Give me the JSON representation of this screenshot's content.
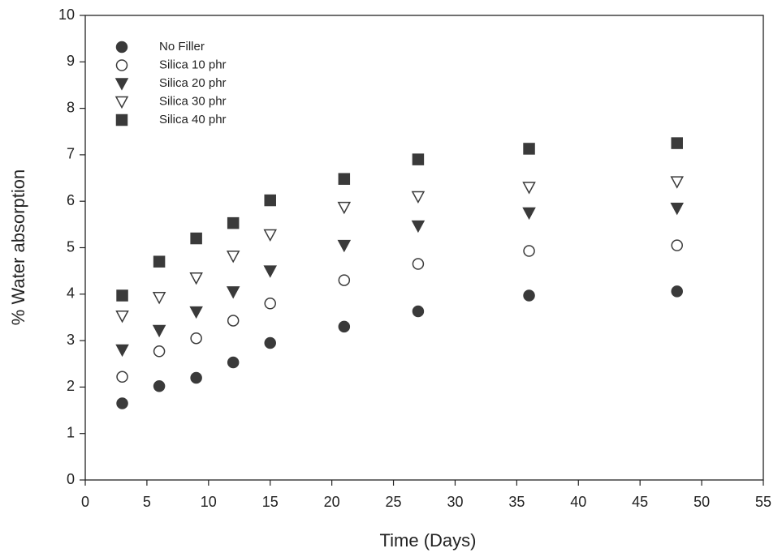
{
  "chart_data": {
    "type": "scatter",
    "x_label": "Time (Days)",
    "y_label": "% Water absorption",
    "x": [
      3,
      6,
      9,
      12,
      15,
      21,
      27,
      36,
      48
    ],
    "xlim": [
      0,
      55
    ],
    "xticks": [
      0,
      5,
      10,
      15,
      20,
      25,
      30,
      35,
      40,
      45,
      50,
      55
    ],
    "ylim": [
      0,
      10
    ],
    "yticks": [
      0,
      1,
      2,
      3,
      4,
      5,
      6,
      7,
      8,
      9,
      10
    ],
    "legend": "upper left",
    "series": [
      {
        "name": "No Filler",
        "color": "#3a3a3a",
        "marker": "circle",
        "filled": true,
        "values": [
          1.65,
          2.02,
          2.2,
          2.53,
          2.95,
          3.3,
          3.63,
          3.97,
          4.06
        ]
      },
      {
        "name": "Silica 10 phr",
        "color": "#3a3a3a",
        "marker": "circle",
        "filled": false,
        "values": [
          2.22,
          2.77,
          3.05,
          3.43,
          3.8,
          4.3,
          4.65,
          4.93,
          5.05
        ]
      },
      {
        "name": "Silica 20 phr",
        "color": "#3a3a3a",
        "marker": "triangle-down",
        "filled": true,
        "values": [
          2.8,
          3.22,
          3.62,
          4.05,
          4.5,
          5.05,
          5.47,
          5.75,
          5.85
        ]
      },
      {
        "name": "Silica 30 phr",
        "color": "#3a3a3a",
        "marker": "triangle-down",
        "filled": false,
        "values": [
          3.53,
          3.93,
          4.35,
          4.82,
          5.28,
          5.87,
          6.1,
          6.3,
          6.42
        ]
      },
      {
        "name": "Silica 40 phr",
        "color": "#3a3a3a",
        "marker": "square",
        "filled": true,
        "values": [
          3.97,
          4.7,
          5.2,
          5.53,
          6.02,
          6.48,
          6.9,
          7.13,
          7.25
        ]
      }
    ]
  }
}
